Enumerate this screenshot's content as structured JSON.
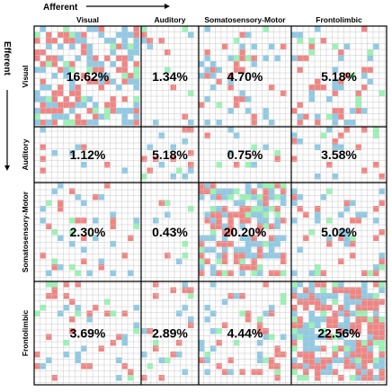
{
  "chart_data": {
    "type": "heatmap",
    "x_axis_title": "Afferent",
    "y_axis_title": "Efferent",
    "columns": [
      "Visual",
      "Auditory",
      "Somatosensory-Motor",
      "Frontolimbic"
    ],
    "rows": [
      "Visual",
      "Auditory",
      "Somatosensory-Motor",
      "Frontolimbic"
    ],
    "cell_values_percent": [
      [
        16.62,
        1.34,
        4.7,
        5.18
      ],
      [
        1.12,
        5.18,
        0.75,
        3.58
      ],
      [
        2.3,
        0.43,
        20.2,
        5.02
      ],
      [
        3.69,
        2.89,
        4.44,
        22.56
      ]
    ],
    "cell_labels": [
      [
        "16.62%",
        "1.34%",
        "4.70%",
        "5.18%"
      ],
      [
        "1.12%",
        "5.18%",
        "0.75%",
        "3.58%"
      ],
      [
        "2.30%",
        "0.43%",
        "20.20%",
        "5.02%"
      ],
      [
        "3.69%",
        "2.89%",
        "4.44%",
        "22.56%"
      ]
    ],
    "legend": "none",
    "colors": {
      "red": "#f28482",
      "blue": "#8ecae6",
      "green": "#98f5b3",
      "grid": "#c8c8c8",
      "border": "#000000"
    }
  }
}
